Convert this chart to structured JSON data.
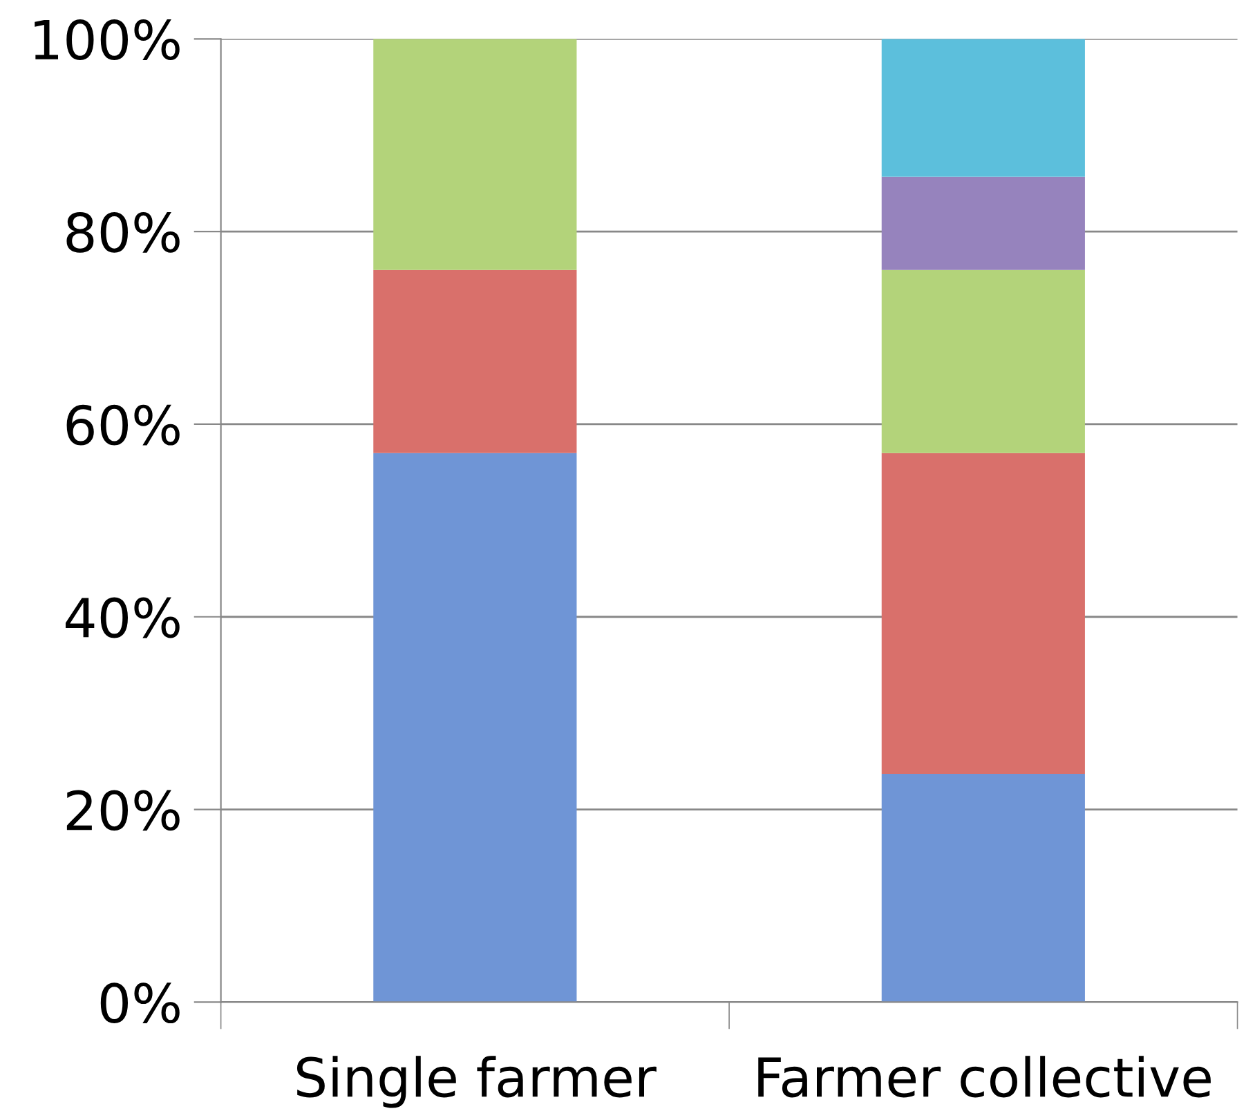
{
  "chart_data": {
    "type": "bar",
    "stacked": true,
    "categories": [
      "Single farmer",
      "Farmer collective"
    ],
    "series": [
      {
        "color": "#6f95d6",
        "values": [
          57,
          23.7
        ]
      },
      {
        "color": "#d9706b",
        "values": [
          19,
          33.3
        ]
      },
      {
        "color": "#b3d37a",
        "values": [
          24,
          19
        ]
      },
      {
        "color": "#9683bd",
        "values": [
          null,
          9.7
        ]
      },
      {
        "color": "#5cbfdc",
        "values": [
          null,
          14.3
        ]
      }
    ],
    "ylim": [
      0,
      100
    ],
    "yticks": [
      {
        "value": 0,
        "label": "0%"
      },
      {
        "value": 20,
        "label": "20%"
      },
      {
        "value": 40,
        "label": "40%"
      },
      {
        "value": 60,
        "label": "60%"
      },
      {
        "value": 80,
        "label": "80%"
      },
      {
        "value": 100,
        "label": "100%"
      }
    ],
    "grid": "y"
  }
}
